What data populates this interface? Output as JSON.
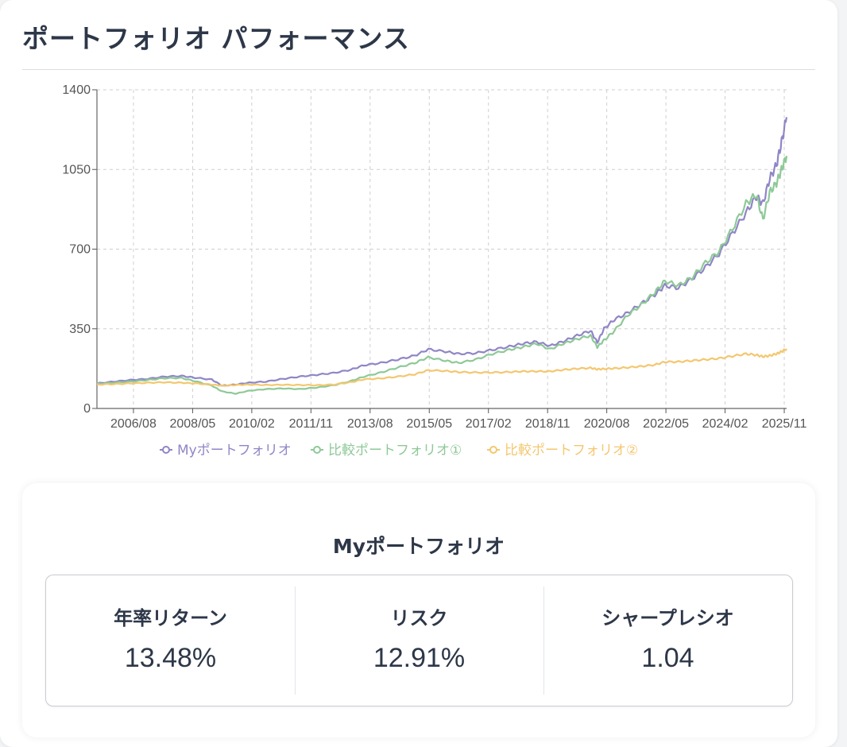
{
  "page": {
    "title": "ポートフォリオ パフォーマンス"
  },
  "colors": {
    "my": "#8f86c6",
    "cmp1": "#8ec997",
    "cmp2": "#f4c76f"
  },
  "chart_data": {
    "type": "line",
    "ylim": [
      0,
      1400
    ],
    "y_ticks": [
      "0",
      "350",
      "700",
      "1050",
      "1400"
    ],
    "x_range": [
      2005.5,
      2025.9
    ],
    "x_ticks": [
      {
        "label": "2006/08",
        "x": 2006.58
      },
      {
        "label": "2008/05",
        "x": 2008.33
      },
      {
        "label": "2010/02",
        "x": 2010.08
      },
      {
        "label": "2011/11",
        "x": 2011.83
      },
      {
        "label": "2013/08",
        "x": 2013.58
      },
      {
        "label": "2015/05",
        "x": 2015.33
      },
      {
        "label": "2017/02",
        "x": 2017.08
      },
      {
        "label": "2018/11",
        "x": 2018.83
      },
      {
        "label": "2020/08",
        "x": 2020.58
      },
      {
        "label": "2022/05",
        "x": 2022.33
      },
      {
        "label": "2024/02",
        "x": 2024.08
      },
      {
        "label": "2025/11",
        "x": 2025.83
      }
    ],
    "grid": true,
    "legend_position": "bottom",
    "series": [
      {
        "name": "Myポートフォリオ",
        "color": "#8f86c6",
        "points": [
          [
            2005.5,
            110
          ],
          [
            2006.0,
            118
          ],
          [
            2006.5,
            125
          ],
          [
            2007.0,
            130
          ],
          [
            2007.5,
            140
          ],
          [
            2008.0,
            143
          ],
          [
            2008.4,
            135
          ],
          [
            2008.9,
            127
          ],
          [
            2009.2,
            100
          ],
          [
            2009.6,
            105
          ],
          [
            2010.0,
            113
          ],
          [
            2010.5,
            118
          ],
          [
            2011.0,
            130
          ],
          [
            2011.5,
            140
          ],
          [
            2012.0,
            148
          ],
          [
            2012.5,
            156
          ],
          [
            2013.0,
            170
          ],
          [
            2013.4,
            190
          ],
          [
            2013.9,
            200
          ],
          [
            2014.4,
            215
          ],
          [
            2014.9,
            232
          ],
          [
            2015.3,
            260
          ],
          [
            2015.8,
            250
          ],
          [
            2016.2,
            240
          ],
          [
            2016.7,
            243
          ],
          [
            2017.2,
            258
          ],
          [
            2017.7,
            272
          ],
          [
            2018.1,
            285
          ],
          [
            2018.5,
            293
          ],
          [
            2018.9,
            275
          ],
          [
            2019.3,
            295
          ],
          [
            2019.7,
            320
          ],
          [
            2020.1,
            342
          ],
          [
            2020.3,
            290
          ],
          [
            2020.5,
            350
          ],
          [
            2020.8,
            390
          ],
          [
            2021.2,
            420
          ],
          [
            2021.6,
            460
          ],
          [
            2022.0,
            500
          ],
          [
            2022.3,
            540
          ],
          [
            2022.7,
            530
          ],
          [
            2023.1,
            570
          ],
          [
            2023.5,
            620
          ],
          [
            2023.9,
            680
          ],
          [
            2024.3,
            770
          ],
          [
            2024.7,
            860
          ],
          [
            2025.0,
            930
          ],
          [
            2025.2,
            900
          ],
          [
            2025.4,
            1010
          ],
          [
            2025.6,
            1070
          ],
          [
            2025.75,
            1170
          ],
          [
            2025.9,
            1280
          ]
        ]
      },
      {
        "name": "比較ポートフォリオ①",
        "color": "#8ec997",
        "points": [
          [
            2005.5,
            108
          ],
          [
            2006.0,
            113
          ],
          [
            2006.5,
            118
          ],
          [
            2007.0,
            125
          ],
          [
            2007.5,
            133
          ],
          [
            2008.0,
            134
          ],
          [
            2008.4,
            120
          ],
          [
            2008.9,
            100
          ],
          [
            2009.2,
            75
          ],
          [
            2009.6,
            65
          ],
          [
            2010.0,
            78
          ],
          [
            2010.5,
            85
          ],
          [
            2011.0,
            88
          ],
          [
            2011.5,
            85
          ],
          [
            2012.0,
            92
          ],
          [
            2012.5,
            102
          ],
          [
            2013.0,
            120
          ],
          [
            2013.4,
            140
          ],
          [
            2013.9,
            158
          ],
          [
            2014.4,
            180
          ],
          [
            2014.9,
            200
          ],
          [
            2015.3,
            225
          ],
          [
            2015.8,
            210
          ],
          [
            2016.2,
            200
          ],
          [
            2016.7,
            215
          ],
          [
            2017.2,
            240
          ],
          [
            2017.7,
            258
          ],
          [
            2018.1,
            270
          ],
          [
            2018.5,
            285
          ],
          [
            2018.9,
            260
          ],
          [
            2019.3,
            285
          ],
          [
            2019.7,
            305
          ],
          [
            2020.1,
            320
          ],
          [
            2020.3,
            270
          ],
          [
            2020.5,
            300
          ],
          [
            2020.8,
            340
          ],
          [
            2021.2,
            410
          ],
          [
            2021.6,
            455
          ],
          [
            2022.0,
            510
          ],
          [
            2022.3,
            560
          ],
          [
            2022.7,
            540
          ],
          [
            2023.1,
            575
          ],
          [
            2023.5,
            640
          ],
          [
            2023.9,
            690
          ],
          [
            2024.3,
            790
          ],
          [
            2024.7,
            900
          ],
          [
            2025.0,
            940
          ],
          [
            2025.2,
            830
          ],
          [
            2025.4,
            950
          ],
          [
            2025.6,
            990
          ],
          [
            2025.75,
            1050
          ],
          [
            2025.9,
            1110
          ]
        ]
      },
      {
        "name": "比較ポートフォリオ②",
        "color": "#f4c76f",
        "points": [
          [
            2005.5,
            105
          ],
          [
            2006.0,
            107
          ],
          [
            2006.5,
            110
          ],
          [
            2007.0,
            113
          ],
          [
            2007.5,
            115
          ],
          [
            2008.0,
            113
          ],
          [
            2008.4,
            110
          ],
          [
            2008.9,
            105
          ],
          [
            2009.2,
            100
          ],
          [
            2009.6,
            103
          ],
          [
            2010.0,
            105
          ],
          [
            2010.5,
            103
          ],
          [
            2011.0,
            104
          ],
          [
            2011.5,
            103
          ],
          [
            2012.0,
            102
          ],
          [
            2012.5,
            105
          ],
          [
            2013.0,
            115
          ],
          [
            2013.4,
            128
          ],
          [
            2013.9,
            132
          ],
          [
            2014.4,
            140
          ],
          [
            2014.9,
            150
          ],
          [
            2015.3,
            168
          ],
          [
            2015.8,
            165
          ],
          [
            2016.2,
            160
          ],
          [
            2016.7,
            158
          ],
          [
            2017.2,
            158
          ],
          [
            2017.7,
            160
          ],
          [
            2018.1,
            163
          ],
          [
            2018.5,
            163
          ],
          [
            2018.9,
            163
          ],
          [
            2019.3,
            170
          ],
          [
            2019.7,
            175
          ],
          [
            2020.1,
            178
          ],
          [
            2020.3,
            172
          ],
          [
            2020.5,
            174
          ],
          [
            2020.8,
            176
          ],
          [
            2021.2,
            180
          ],
          [
            2021.6,
            185
          ],
          [
            2022.0,
            192
          ],
          [
            2022.3,
            205
          ],
          [
            2022.7,
            205
          ],
          [
            2023.1,
            210
          ],
          [
            2023.5,
            215
          ],
          [
            2023.9,
            220
          ],
          [
            2024.3,
            230
          ],
          [
            2024.7,
            240
          ],
          [
            2025.0,
            235
          ],
          [
            2025.2,
            228
          ],
          [
            2025.4,
            232
          ],
          [
            2025.6,
            240
          ],
          [
            2025.75,
            250
          ],
          [
            2025.9,
            262
          ]
        ]
      }
    ]
  },
  "stats": {
    "title": "Myポートフォリオ",
    "metrics": [
      {
        "label": "年率リターン",
        "value": "13.48%"
      },
      {
        "label": "リスク",
        "value": "12.91%"
      },
      {
        "label": "シャープレシオ",
        "value": "1.04"
      }
    ]
  }
}
